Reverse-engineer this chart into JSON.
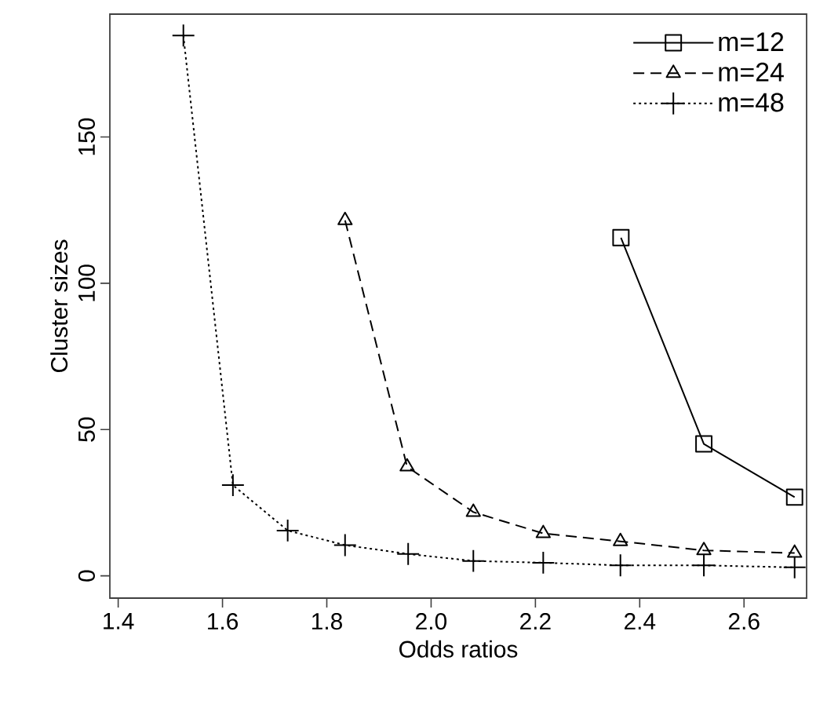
{
  "chart_data": {
    "type": "line",
    "xlabel": "Odds ratios",
    "ylabel": "Cluster sizes",
    "xlim": [
      1.384,
      2.72
    ],
    "ylim": [
      -7.6,
      192
    ],
    "xticks": [
      {
        "value": 1.4,
        "label": "1.4"
      },
      {
        "value": 1.6,
        "label": "1.6"
      },
      {
        "value": 1.8,
        "label": "1.8"
      },
      {
        "value": 2.0,
        "label": "2.0"
      },
      {
        "value": 2.2,
        "label": "2.2"
      },
      {
        "value": 2.4,
        "label": "2.4"
      },
      {
        "value": 2.6,
        "label": "2.6"
      }
    ],
    "yticks": [
      0,
      50,
      100,
      150
    ],
    "grid": false,
    "legend": "top right",
    "series": [
      {
        "name": "m=12",
        "color": "#000000",
        "marker": "square",
        "line_style": "solid",
        "x": [
          2.364,
          2.523,
          2.697
        ],
        "values": [
          115.6,
          45.1,
          26.9
        ]
      },
      {
        "name": "m=24",
        "color": "#000000",
        "marker": "triangle",
        "line_style": "dashed",
        "x": [
          1.835,
          1.954,
          2.081,
          2.215,
          2.363,
          2.523,
          2.697
        ],
        "values": [
          121.5,
          37.3,
          21.8,
          14.5,
          11.8,
          8.7,
          7.8
        ]
      },
      {
        "name": "m=48",
        "color": "#000000",
        "marker": "cross",
        "line_style": "dotted",
        "x": [
          1.525,
          1.62,
          1.725,
          1.835,
          1.956,
          2.081,
          2.215,
          2.363,
          2.523,
          2.697
        ],
        "values": [
          184.7,
          31,
          15.5,
          10.5,
          7.5,
          5.1,
          4.5,
          3.6,
          3.6,
          2.9
        ]
      }
    ]
  }
}
